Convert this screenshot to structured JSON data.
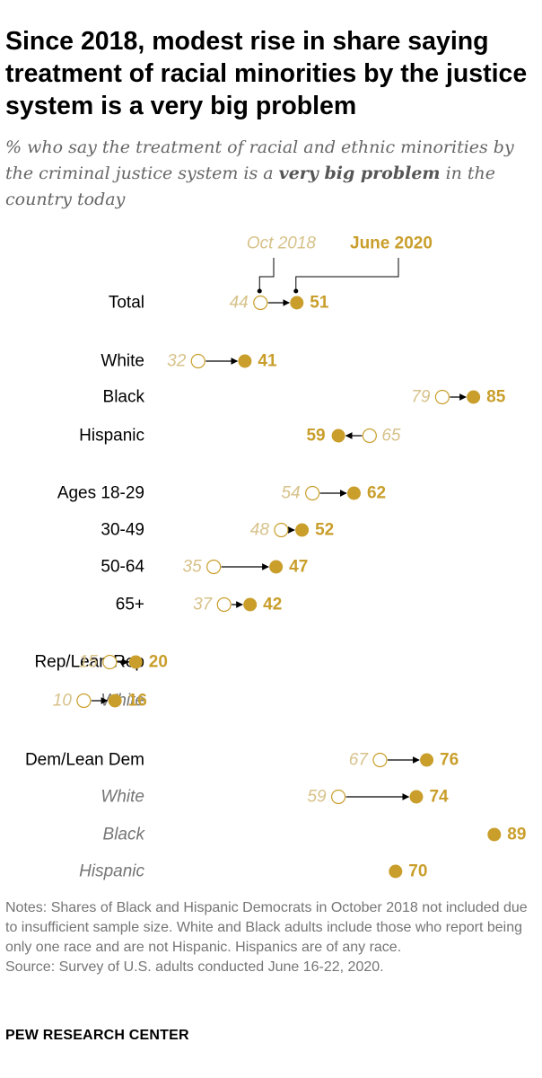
{
  "title": "Since 2018, modest rise in share saying treatment of racial minorities by the justice system is a very big problem",
  "subtitle": {
    "before": "% who say the treatment of racial and ethnic minorities by the criminal justice system is a ",
    "emphasis": "very big problem",
    "after": " in the country today"
  },
  "notes": {
    "note": "Notes: Shares of Black and Hispanic Democrats in October 2018 not included due to insufficient sample size. White and Black adults include those who report being only one race and are not Hispanic. Hispanics are of any race.",
    "source": "Source: Survey of U.S. adults conducted June 16-22, 2020."
  },
  "brand": "PEW RESEARCH CENTER",
  "colors": {
    "june_2020": "#C99E2B",
    "oct_2018_label": "#D7C28A",
    "sub_label": "#757575",
    "arrow": "#000000"
  },
  "chart_data": {
    "type": "dot",
    "series": [
      {
        "name": "Oct 2018",
        "style": "hollow circle, italic label"
      },
      {
        "name": "June 2020",
        "style": "filled circle, bold label"
      }
    ],
    "rows": [
      {
        "label": "Total",
        "oct2018": 44,
        "june2020": 51,
        "sub": false
      },
      {
        "label": "White",
        "oct2018": 32,
        "june2020": 41,
        "sub": false
      },
      {
        "label": "Black",
        "oct2018": 79,
        "june2020": 85,
        "sub": false
      },
      {
        "label": "Hispanic",
        "oct2018": 65,
        "june2020": 59,
        "sub": false
      },
      {
        "label": "Ages 18-29",
        "oct2018": 54,
        "june2020": 62,
        "sub": false
      },
      {
        "label": "30-49",
        "oct2018": 48,
        "june2020": 52,
        "sub": false
      },
      {
        "label": "50-64",
        "oct2018": 35,
        "june2020": 47,
        "sub": false
      },
      {
        "label": "65+",
        "oct2018": 37,
        "june2020": 42,
        "sub": false
      },
      {
        "label": "Rep/Lean Rep",
        "oct2018": 15,
        "june2020": 20,
        "sub": false
      },
      {
        "label": "White",
        "oct2018": 10,
        "june2020": 16,
        "sub": true
      },
      {
        "label": "Dem/Lean Dem",
        "oct2018": 67,
        "june2020": 76,
        "sub": false
      },
      {
        "label": "White",
        "oct2018": 59,
        "june2020": 74,
        "sub": true
      },
      {
        "label": "Black",
        "oct2018": null,
        "june2020": 89,
        "sub": true
      },
      {
        "label": "Hispanic",
        "oct2018": null,
        "june2020": 70,
        "sub": true
      }
    ]
  }
}
